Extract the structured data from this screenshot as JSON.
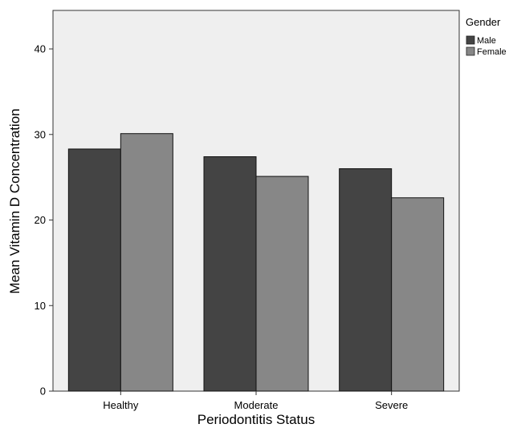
{
  "chart_data": {
    "type": "bar",
    "title": "",
    "xlabel": "Periodontitis Status",
    "ylabel": "Mean Vitamin D Concentration",
    "categories": [
      "Healthy",
      "Moderate",
      "Severe"
    ],
    "series": [
      {
        "name": "Male",
        "values": [
          28.3,
          27.4,
          26.0
        ],
        "color": "#444444"
      },
      {
        "name": "Female",
        "values": [
          30.1,
          25.1,
          22.6
        ],
        "color": "#878787"
      }
    ],
    "ylim": [
      0,
      44.5
    ],
    "yticks": [
      0,
      10,
      20,
      30,
      40
    ],
    "grid": false,
    "legend": {
      "title": "Gender",
      "position": "top-right outside plot"
    },
    "plot_background": "#efefef"
  }
}
